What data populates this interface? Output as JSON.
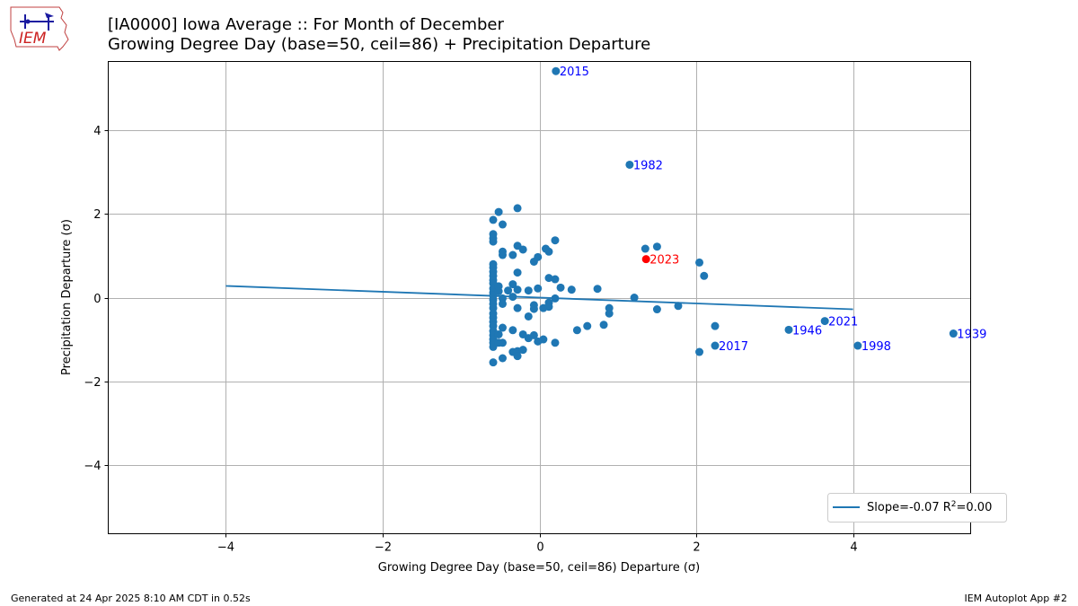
{
  "header": {
    "logo_text": "IEM",
    "title_line1": "[IA0000] Iowa Average :: For Month of December",
    "title_line2": "Growing Degree Day (base=50, ceil=86) + Precipitation Departure"
  },
  "footer": {
    "generated": "Generated at 24 Apr 2025 8:10 AM CDT in 0.52s",
    "app": "IEM Autoplot App #2"
  },
  "colors": {
    "points": "#1f77b4",
    "highlight": "#ff0000",
    "label": "#0000ff",
    "fit_line": "#1f77b4",
    "grid": "#b0b0b0"
  },
  "chart_data": {
    "type": "scatter",
    "xlabel": "Growing Degree Day (base=50, ceil=86) Departure (σ)",
    "ylabel": "Precipitation Departure (σ)",
    "xlim": [
      -5.5,
      5.5
    ],
    "ylim": [
      -5.65,
      5.65
    ],
    "xticks": [
      -4,
      -2,
      0,
      2,
      4
    ],
    "yticks": [
      -4,
      -2,
      0,
      2,
      4
    ],
    "grid": true,
    "legend_position": "lower-right",
    "fit_line": {
      "x": [
        -4,
        4
      ],
      "y": [
        0.28,
        -0.28
      ],
      "slope": -0.07,
      "r2": 0.0,
      "legend_prefix": "Slope=-0.07 R",
      "legend_sup": "2",
      "legend_suffix": "=0.00"
    },
    "points": [
      [
        -0.59,
        1.86
      ],
      [
        -0.59,
        1.52
      ],
      [
        -0.59,
        1.42
      ],
      [
        -0.59,
        1.34
      ],
      [
        -0.59,
        0.8
      ],
      [
        -0.59,
        0.72
      ],
      [
        -0.59,
        0.62
      ],
      [
        -0.59,
        0.52
      ],
      [
        -0.59,
        0.42
      ],
      [
        -0.59,
        0.34
      ],
      [
        -0.59,
        0.22
      ],
      [
        -0.59,
        0.12
      ],
      [
        -0.59,
        0.05
      ],
      [
        -0.59,
        -0.05
      ],
      [
        -0.59,
        -0.15
      ],
      [
        -0.59,
        -0.25
      ],
      [
        -0.59,
        -0.38
      ],
      [
        -0.59,
        -0.48
      ],
      [
        -0.59,
        -0.58
      ],
      [
        -0.59,
        -0.68
      ],
      [
        -0.59,
        -0.8
      ],
      [
        -0.59,
        -0.9
      ],
      [
        -0.59,
        -1.0
      ],
      [
        -0.59,
        -1.08
      ],
      [
        -0.59,
        -1.18
      ],
      [
        -0.59,
        -1.55
      ],
      [
        -0.52,
        2.05
      ],
      [
        -0.52,
        0.27
      ],
      [
        -0.52,
        0.15
      ],
      [
        -0.52,
        -0.88
      ],
      [
        -0.52,
        -1.08
      ],
      [
        -0.47,
        1.75
      ],
      [
        -0.47,
        1.02
      ],
      [
        -0.47,
        1.1
      ],
      [
        -0.47,
        -0.02
      ],
      [
        -0.47,
        -0.15
      ],
      [
        -0.47,
        -0.72
      ],
      [
        -0.47,
        -1.08
      ],
      [
        -0.47,
        -1.45
      ],
      [
        -0.4,
        0.17
      ],
      [
        -0.34,
        1.02
      ],
      [
        -0.34,
        0.32
      ],
      [
        -0.34,
        0.02
      ],
      [
        -0.34,
        -0.78
      ],
      [
        -0.34,
        -1.3
      ],
      [
        -0.28,
        2.14
      ],
      [
        -0.28,
        1.24
      ],
      [
        -0.28,
        0.6
      ],
      [
        -0.28,
        0.19
      ],
      [
        -0.28,
        -0.25
      ],
      [
        -0.28,
        -1.28
      ],
      [
        -0.28,
        -1.4
      ],
      [
        -0.21,
        1.15
      ],
      [
        -0.21,
        -0.88
      ],
      [
        -0.21,
        -1.25
      ],
      [
        -0.14,
        0.17
      ],
      [
        -0.14,
        -0.45
      ],
      [
        -0.14,
        -0.97
      ],
      [
        -0.07,
        0.86
      ],
      [
        -0.07,
        -0.18
      ],
      [
        -0.07,
        -0.27
      ],
      [
        -0.07,
        -0.9
      ],
      [
        -0.02,
        0.97
      ],
      [
        -0.02,
        0.22
      ],
      [
        -0.02,
        -1.05
      ],
      [
        0.05,
        -0.25
      ],
      [
        0.05,
        -1.0
      ],
      [
        0.08,
        1.17
      ],
      [
        0.12,
        1.1
      ],
      [
        0.12,
        0.47
      ],
      [
        0.12,
        -0.12
      ],
      [
        0.12,
        -0.22
      ],
      [
        0.2,
        1.37
      ],
      [
        0.2,
        0.44
      ],
      [
        0.2,
        -0.02
      ],
      [
        0.2,
        -1.08
      ],
      [
        0.27,
        0.24
      ],
      [
        0.41,
        0.19
      ],
      [
        0.48,
        -0.78
      ],
      [
        0.61,
        -0.68
      ],
      [
        0.74,
        0.21
      ],
      [
        0.82,
        -0.65
      ],
      [
        0.89,
        -0.25
      ],
      [
        0.89,
        -0.38
      ],
      [
        1.21,
        0.0
      ],
      [
        1.35,
        1.17
      ],
      [
        1.5,
        1.22
      ],
      [
        1.5,
        -0.28
      ],
      [
        1.77,
        -0.2
      ],
      [
        2.04,
        0.84
      ],
      [
        2.04,
        -1.3
      ],
      [
        2.1,
        0.52
      ],
      [
        2.24,
        -0.68
      ]
    ],
    "labeled_points": [
      {
        "year": "2015",
        "x": 0.21,
        "y": 5.42
      },
      {
        "year": "1982",
        "x": 1.15,
        "y": 3.18
      },
      {
        "year": "2023",
        "x": 1.36,
        "y": 0.92,
        "highlight": true
      },
      {
        "year": "2021",
        "x": 3.64,
        "y": -0.56
      },
      {
        "year": "1946",
        "x": 3.18,
        "y": -0.77
      },
      {
        "year": "2017",
        "x": 2.24,
        "y": -1.15
      },
      {
        "year": "1998",
        "x": 4.06,
        "y": -1.15
      },
      {
        "year": "1939",
        "x": 5.28,
        "y": -0.86
      }
    ]
  }
}
